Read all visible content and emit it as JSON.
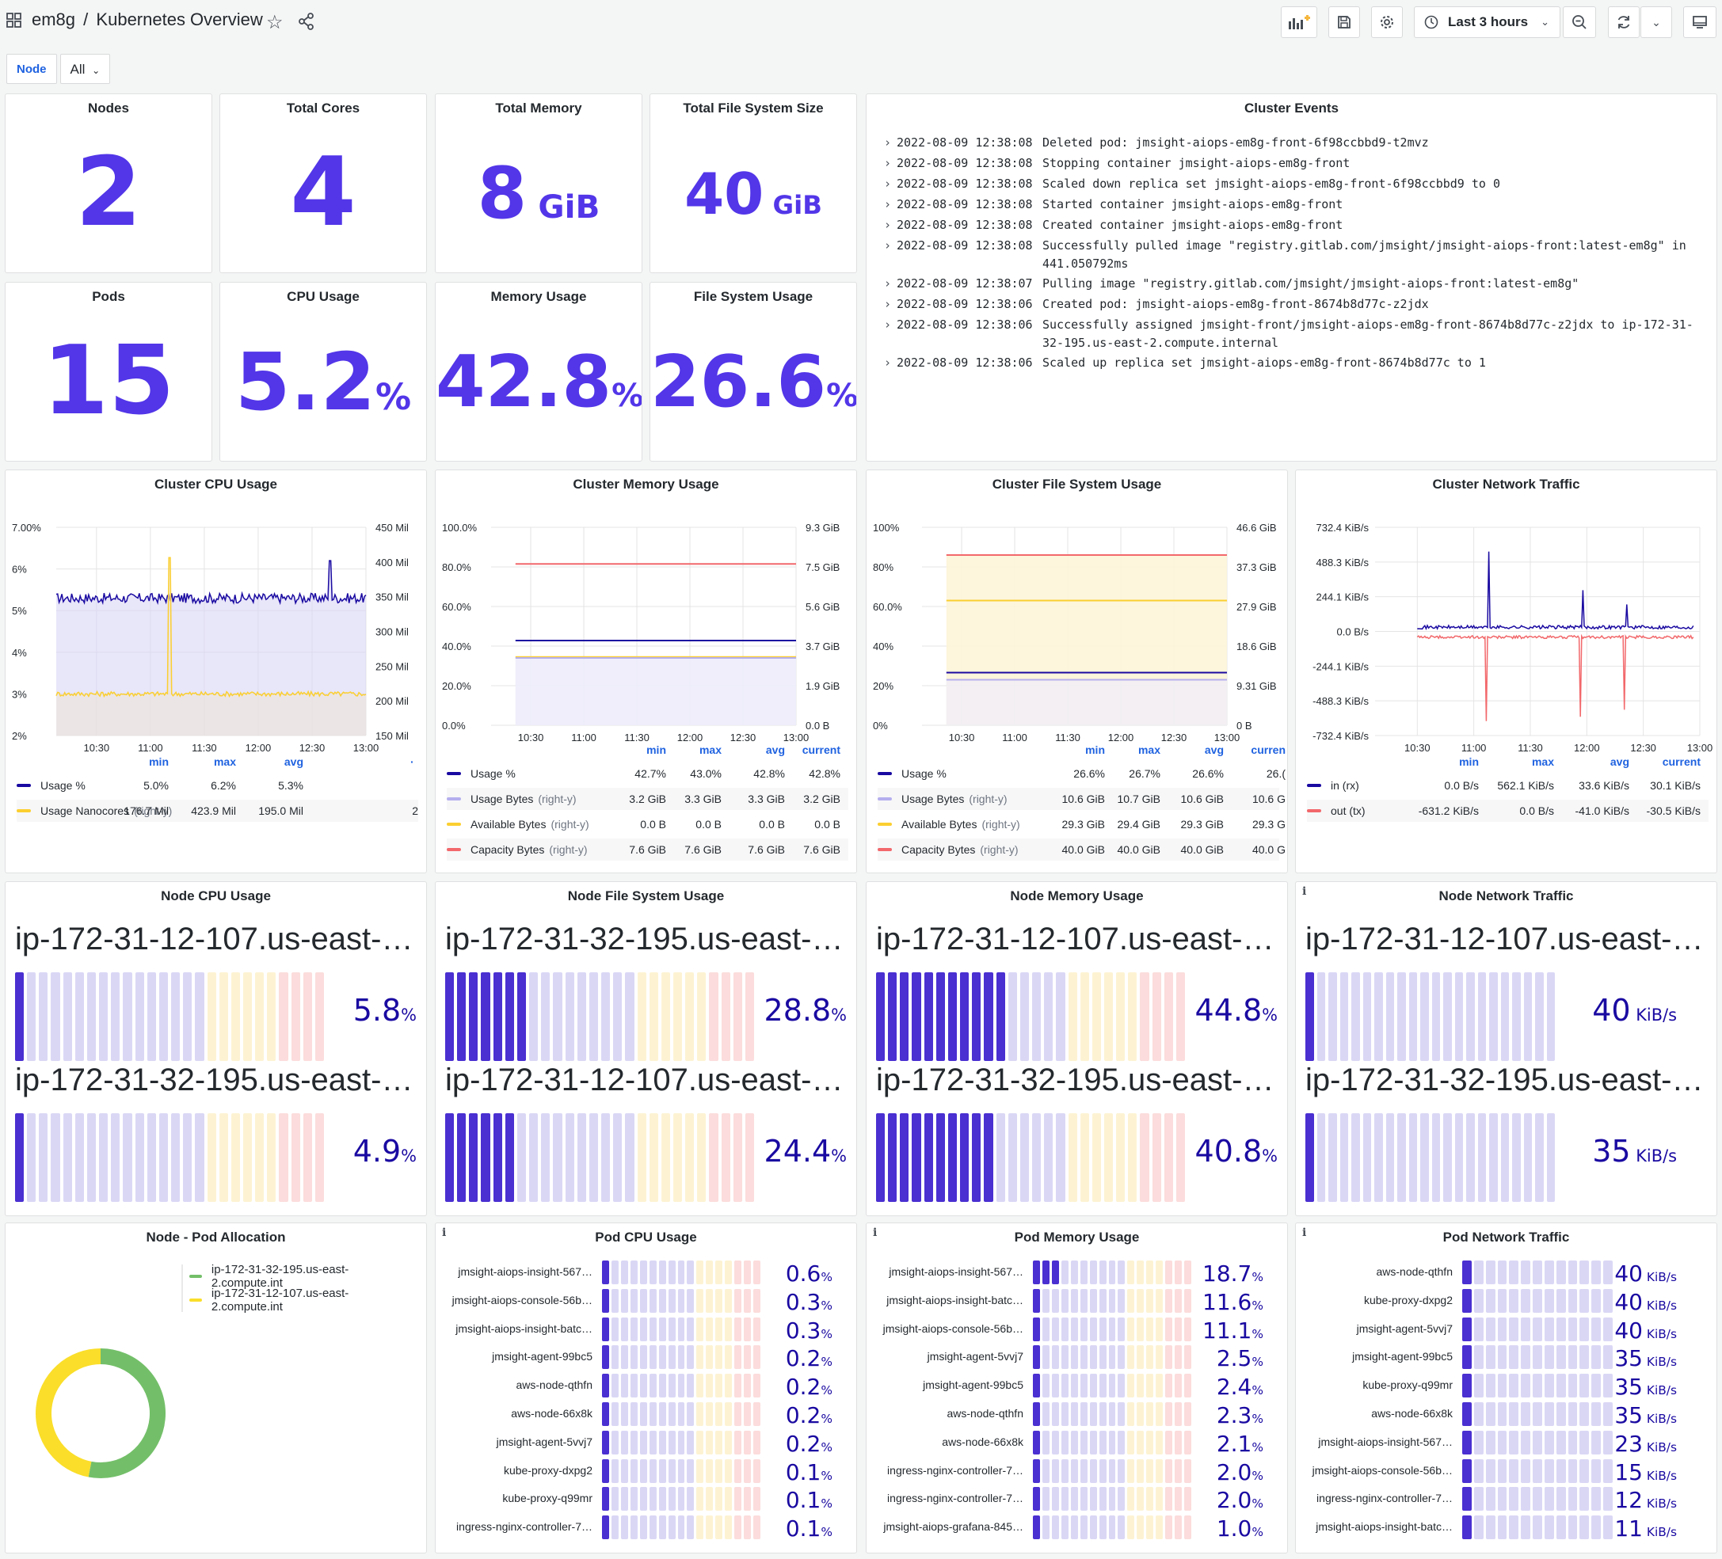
{
  "header": {
    "folder": "em8g",
    "separator": "/",
    "title": "Kubernetes Overview",
    "time_range": "Last 3 hours"
  },
  "variables": {
    "node_label": "Node",
    "node_value": "All"
  },
  "colors": {
    "purple": "#5236e8",
    "deep": "#1a0aa1",
    "yellow": "#fbcf30",
    "red": "#f2686b",
    "lavender": "#b5afee",
    "green": "#73bf69"
  },
  "stats": [
    {
      "title": "Nodes",
      "value": "2",
      "unit": ""
    },
    {
      "title": "Total Cores",
      "value": "4",
      "unit": ""
    },
    {
      "title": "Total Memory",
      "value": "8",
      "unit": " GiB"
    },
    {
      "title": "Total File System Size",
      "value": "40",
      "unit": " GiB"
    },
    {
      "title": "Pods",
      "value": "15",
      "unit": ""
    },
    {
      "title": "CPU Usage",
      "value": "5.2",
      "unit": "%"
    },
    {
      "title": "Memory Usage",
      "value": "42.8",
      "unit": "%"
    },
    {
      "title": "File System Usage",
      "value": "26.6",
      "unit": "%"
    }
  ],
  "cluster_events": {
    "title": "Cluster Events",
    "items": [
      {
        "ts": "2022-08-09 12:38:08",
        "msg": "Deleted pod: jmsight-aiops-em8g-front-6f98ccbbd9-t2mvz"
      },
      {
        "ts": "2022-08-09 12:38:08",
        "msg": "Stopping container jmsight-aiops-em8g-front"
      },
      {
        "ts": "2022-08-09 12:38:08",
        "msg": "Scaled down replica set jmsight-aiops-em8g-front-6f98ccbbd9 to 0"
      },
      {
        "ts": "2022-08-09 12:38:08",
        "msg": "Started container jmsight-aiops-em8g-front"
      },
      {
        "ts": "2022-08-09 12:38:08",
        "msg": "Created container jmsight-aiops-em8g-front"
      },
      {
        "ts": "2022-08-09 12:38:08",
        "msg": "Successfully pulled image \"registry.gitlab.com/jmsight/jmsight-aiops-front:latest-em8g\" in 441.050792ms"
      },
      {
        "ts": "2022-08-09 12:38:07",
        "msg": "Pulling image \"registry.gitlab.com/jmsight/jmsight-aiops-front:latest-em8g\""
      },
      {
        "ts": "2022-08-09 12:38:06",
        "msg": "Created pod: jmsight-aiops-em8g-front-8674b8d77c-z2jdx"
      },
      {
        "ts": "2022-08-09 12:38:06",
        "msg": "Successfully assigned jmsight-front/jmsight-aiops-em8g-front-8674b8d77c-z2jdx to ip-172-31-32-195.us-east-2.compute.internal"
      },
      {
        "ts": "2022-08-09 12:38:06",
        "msg": "Scaled up replica set jmsight-aiops-em8g-front-8674b8d77c to 1"
      }
    ]
  },
  "legend_headers": {
    "min": "min",
    "max": "max",
    "avg": "avg",
    "current": "current",
    "current_cut": "curren"
  },
  "chart_data": [
    {
      "type": "line",
      "title": "Cluster CPU Usage",
      "x_ticks": [
        "10:30",
        "11:00",
        "11:30",
        "12:00",
        "12:30",
        "13:00"
      ],
      "y_left_ticks": [
        "7.00%",
        "6%",
        "5%",
        "4%",
        "3%",
        "2%"
      ],
      "y_left_range": [
        2,
        7
      ],
      "y_right_ticks": [
        "450 Mil",
        "400 Mil",
        "350 Mil",
        "300 Mil",
        "250 Mil",
        "200 Mil",
        "150 Mil"
      ],
      "y_right_range": [
        125,
        475
      ],
      "series": [
        {
          "name": "Usage %",
          "color": "#1a0aa1",
          "fill": "#d9d5f5",
          "axis": "left",
          "base": 5.3,
          "noise": 0.12,
          "spike": {
            "at": 0.885,
            "value": 6.2
          }
        },
        {
          "name": "Usage Nanocores",
          "axis_note": "(right-y)",
          "color": "#fbcf30",
          "fill": "#eee5d8",
          "axis": "right",
          "base": 195,
          "noise": 4,
          "spike": {
            "at": 0.365,
            "value": 424
          }
        }
      ],
      "legend": [
        {
          "name": "Usage %",
          "right_y": "",
          "color": "#1a0aa1",
          "min": "5.0%",
          "max": "6.2%",
          "avg": "5.3%"
        },
        {
          "name": "Usage Nanocores",
          "right_y": "(right-y)",
          "color": "#fbcf30",
          "min": "176.7 Mil",
          "max": "423.9 Mil",
          "avg": "195.0 Mil",
          "current_cut": "2"
        }
      ]
    },
    {
      "type": "line",
      "title": "Cluster Memory Usage",
      "x_ticks": [
        "10:30",
        "11:00",
        "11:30",
        "12:00",
        "12:30",
        "13:00"
      ],
      "y_left_ticks": [
        "100.0%",
        "80.0%",
        "60.0%",
        "40.0%",
        "20.0%",
        "0.0%"
      ],
      "y_left_range": [
        0,
        100
      ],
      "y_right_ticks": [
        "9.3 GiB",
        "7.5 GiB",
        "5.6 GiB",
        "3.7 GiB",
        "1.9 GiB",
        "0.0 B"
      ],
      "series": [
        {
          "name": "Capacity Bytes",
          "color": "#f2686b",
          "value_pct": 81.5
        },
        {
          "name": "Usage %",
          "color": "#1a0aa1",
          "value_pct": 42.8
        },
        {
          "name": "Available Bytes",
          "color": "#fbcf30",
          "value_pct": 34.5
        },
        {
          "name": "Usage Bytes",
          "color": "#b5afee",
          "value_pct": 34.0
        }
      ],
      "legend": [
        {
          "name": "Usage %",
          "right_y": "",
          "color": "#1a0aa1",
          "min": "42.7%",
          "max": "43.0%",
          "avg": "42.8%",
          "current": "42.8%"
        },
        {
          "name": "Usage Bytes",
          "right_y": "(right-y)",
          "color": "#b5afee",
          "min": "3.2 GiB",
          "max": "3.3 GiB",
          "avg": "3.3 GiB",
          "current": "3.2 GiB"
        },
        {
          "name": "Available Bytes",
          "right_y": "(right-y)",
          "color": "#fbcf30",
          "min": "0.0 B",
          "max": "0.0 B",
          "avg": "0.0 B",
          "current": "0.0 B"
        },
        {
          "name": "Capacity Bytes",
          "right_y": "(right-y)",
          "color": "#f2686b",
          "min": "7.6 GiB",
          "max": "7.6 GiB",
          "avg": "7.6 GiB",
          "current": "7.6 GiB"
        }
      ]
    },
    {
      "type": "line",
      "title": "Cluster File System Usage",
      "x_ticks": [
        "10:30",
        "11:00",
        "11:30",
        "12:00",
        "12:30",
        "13:00"
      ],
      "y_left_ticks": [
        "100%",
        "80%",
        "60.0%",
        "40%",
        "20%",
        "0%"
      ],
      "y_left_range": [
        0,
        100
      ],
      "y_right_ticks": [
        "46.6 GiB",
        "37.3 GiB",
        "27.9 GiB",
        "18.6 GiB",
        "9.31 GiB",
        "0 B"
      ],
      "series": [
        {
          "name": "Capacity Bytes",
          "color": "#f2686b",
          "value_pct": 86
        },
        {
          "name": "Available Bytes",
          "color": "#fbcf30",
          "value_pct": 63
        },
        {
          "name": "Usage %",
          "color": "#1a0aa1",
          "value_pct": 26.6
        },
        {
          "name": "Usage Bytes",
          "color": "#b5afee",
          "value_pct": 23
        }
      ],
      "legend": [
        {
          "name": "Usage %",
          "right_y": "",
          "color": "#1a0aa1",
          "min": "26.6%",
          "max": "26.7%",
          "avg": "26.6%",
          "current_cut": "26.("
        },
        {
          "name": "Usage Bytes",
          "right_y": "(right-y)",
          "color": "#b5afee",
          "min": "10.6 GiB",
          "max": "10.7 GiB",
          "avg": "10.6 GiB",
          "current_cut": "10.6 G"
        },
        {
          "name": "Available Bytes",
          "right_y": "(right-y)",
          "color": "#fbcf30",
          "min": "29.3 GiB",
          "max": "29.4 GiB",
          "avg": "29.3 GiB",
          "current_cut": "29.3 G"
        },
        {
          "name": "Capacity Bytes",
          "right_y": "(right-y)",
          "color": "#f2686b",
          "min": "40.0 GiB",
          "max": "40.0 GiB",
          "avg": "40.0 GiB",
          "current_cut": "40.0 G"
        }
      ]
    },
    {
      "type": "line",
      "title": "Cluster Network Traffic",
      "x_ticks": [
        "10:30",
        "11:00",
        "11:30",
        "12:00",
        "12:30",
        "13:00"
      ],
      "y_left_ticks": [
        "732.4 KiB/s",
        "488.3 KiB/s",
        "244.1 KiB/s",
        "0.0 B/s",
        "-244.1 KiB/s",
        "-488.3 KiB/s",
        "-732.4 KiB/s"
      ],
      "y_left_range": [
        -732.4,
        732.4
      ],
      "series": [
        {
          "name": "in (rx)",
          "color": "#1a0aa1",
          "base": 30,
          "noise": 12,
          "spikes": [
            {
              "at": 0.26,
              "value": 562
            },
            {
              "at": 0.6,
              "value": 290
            },
            {
              "at": 0.76,
              "value": 190
            }
          ]
        },
        {
          "name": "out (tx)",
          "color": "#f2686b",
          "base": -40,
          "noise": 10,
          "spikes": [
            {
              "at": 0.25,
              "value": -631
            },
            {
              "at": 0.59,
              "value": -600
            },
            {
              "at": 0.75,
              "value": -550
            }
          ]
        }
      ],
      "legend": [
        {
          "name": "in (rx)",
          "right_y": "",
          "color": "#1a0aa1",
          "min": "0.0 B/s",
          "max": "562.1 KiB/s",
          "avg": "33.6 KiB/s",
          "current": "30.1 KiB/s"
        },
        {
          "name": "out (tx)",
          "right_y": "",
          "color": "#f2686b",
          "min": "-631.2 KiB/s",
          "max": "0.0 B/s",
          "avg": "-41.0 KiB/s",
          "current": "-30.5 KiB/s"
        }
      ]
    }
  ],
  "node_gauges": [
    {
      "title": "Node CPU Usage",
      "info": false,
      "kind": "pct",
      "items": [
        {
          "name": "ip-172-31-12-107.us-east-…",
          "value": "5.8",
          "unit": "%",
          "fill": 0.058
        },
        {
          "name": "ip-172-31-32-195.us-east-…",
          "value": "4.9",
          "unit": "%",
          "fill": 0.049
        }
      ]
    },
    {
      "title": "Node File System Usage",
      "info": false,
      "kind": "pct",
      "items": [
        {
          "name": "ip-172-31-32-195.us-east-…",
          "value": "28.8",
          "unit": "%",
          "fill": 0.288
        },
        {
          "name": "ip-172-31-12-107.us-east-…",
          "value": "24.4",
          "unit": "%",
          "fill": 0.244
        }
      ]
    },
    {
      "title": "Node Memory Usage",
      "info": false,
      "kind": "pct",
      "items": [
        {
          "name": "ip-172-31-12-107.us-east-…",
          "value": "44.8",
          "unit": "%",
          "fill": 0.448
        },
        {
          "name": "ip-172-31-32-195.us-east-…",
          "value": "40.8",
          "unit": "%",
          "fill": 0.408
        }
      ]
    },
    {
      "title": "Node Network Traffic",
      "info": true,
      "kind": "net",
      "items": [
        {
          "name": "ip-172-31-12-107.us-east-…",
          "value": "40",
          "unit": " KiB/s",
          "fill": 0.04
        },
        {
          "name": "ip-172-31-32-195.us-east-…",
          "value": "35",
          "unit": " KiB/s",
          "fill": 0.035
        }
      ]
    }
  ],
  "pod_allocation": {
    "title": "Node - Pod Allocation",
    "legend": [
      {
        "name": "ip-172-31-32-195.us-east-2.compute.int",
        "color": "#73bf69",
        "share": 0.53
      },
      {
        "name": "ip-172-31-12-107.us-east-2.compute.int",
        "color": "#fade2a",
        "share": 0.47
      }
    ]
  },
  "pod_gauges": [
    {
      "title": "Pod CPU Usage",
      "info": true,
      "kind": "pct",
      "items": [
        {
          "name": "jmsight-aiops-insight-567…",
          "value": "0.6",
          "unit": "%",
          "fill": 0.006
        },
        {
          "name": "jmsight-aiops-console-56b…",
          "value": "0.3",
          "unit": "%",
          "fill": 0.003
        },
        {
          "name": "jmsight-aiops-insight-batc…",
          "value": "0.3",
          "unit": "%",
          "fill": 0.003
        },
        {
          "name": "jmsight-agent-99bc5",
          "value": "0.2",
          "unit": "%",
          "fill": 0.002
        },
        {
          "name": "aws-node-qthfn",
          "value": "0.2",
          "unit": "%",
          "fill": 0.002
        },
        {
          "name": "aws-node-66x8k",
          "value": "0.2",
          "unit": "%",
          "fill": 0.002
        },
        {
          "name": "jmsight-agent-5vvj7",
          "value": "0.2",
          "unit": "%",
          "fill": 0.002
        },
        {
          "name": "kube-proxy-dxpg2",
          "value": "0.1",
          "unit": "%",
          "fill": 0.001
        },
        {
          "name": "kube-proxy-q99mr",
          "value": "0.1",
          "unit": "%",
          "fill": 0.001
        },
        {
          "name": "ingress-nginx-controller-7…",
          "value": "0.1",
          "unit": "%",
          "fill": 0.001
        }
      ]
    },
    {
      "title": "Pod Memory Usage",
      "info": true,
      "kind": "pct",
      "items": [
        {
          "name": "jmsight-aiops-insight-567…",
          "value": "18.7",
          "unit": "%",
          "fill": 0.187
        },
        {
          "name": "jmsight-aiops-insight-batc…",
          "value": "11.6",
          "unit": "%",
          "fill": 0.116
        },
        {
          "name": "jmsight-aiops-console-56b…",
          "value": "11.1",
          "unit": "%",
          "fill": 0.111
        },
        {
          "name": "jmsight-agent-5vvj7",
          "value": "2.5",
          "unit": "%",
          "fill": 0.025
        },
        {
          "name": "jmsight-agent-99bc5",
          "value": "2.4",
          "unit": "%",
          "fill": 0.024
        },
        {
          "name": "aws-node-qthfn",
          "value": "2.3",
          "unit": "%",
          "fill": 0.023
        },
        {
          "name": "aws-node-66x8k",
          "value": "2.1",
          "unit": "%",
          "fill": 0.021
        },
        {
          "name": "ingress-nginx-controller-7…",
          "value": "2.0",
          "unit": "%",
          "fill": 0.02
        },
        {
          "name": "ingress-nginx-controller-7…",
          "value": "2.0",
          "unit": "%",
          "fill": 0.02
        },
        {
          "name": "jmsight-aiops-grafana-845…",
          "value": "1.0",
          "unit": "%",
          "fill": 0.01
        }
      ]
    },
    {
      "title": "Pod Network Traffic",
      "info": true,
      "kind": "net",
      "items": [
        {
          "name": "aws-node-qthfn",
          "value": "40",
          "unit": " KiB/s",
          "fill": 0.04
        },
        {
          "name": "kube-proxy-dxpg2",
          "value": "40",
          "unit": " KiB/s",
          "fill": 0.04
        },
        {
          "name": "jmsight-agent-5vvj7",
          "value": "40",
          "unit": " KiB/s",
          "fill": 0.04
        },
        {
          "name": "jmsight-agent-99bc5",
          "value": "35",
          "unit": " KiB/s",
          "fill": 0.035
        },
        {
          "name": "kube-proxy-q99mr",
          "value": "35",
          "unit": " KiB/s",
          "fill": 0.035
        },
        {
          "name": "aws-node-66x8k",
          "value": "35",
          "unit": " KiB/s",
          "fill": 0.035
        },
        {
          "name": "jmsight-aiops-insight-567…",
          "value": "23",
          "unit": " KiB/s",
          "fill": 0.023
        },
        {
          "name": "jmsight-aiops-console-56b…",
          "value": "15",
          "unit": " KiB/s",
          "fill": 0.015
        },
        {
          "name": "ingress-nginx-controller-7…",
          "value": "12",
          "unit": " KiB/s",
          "fill": 0.012
        },
        {
          "name": "jmsight-aiops-insight-batc…",
          "value": "11",
          "unit": " KiB/s",
          "fill": 0.011
        }
      ]
    }
  ]
}
